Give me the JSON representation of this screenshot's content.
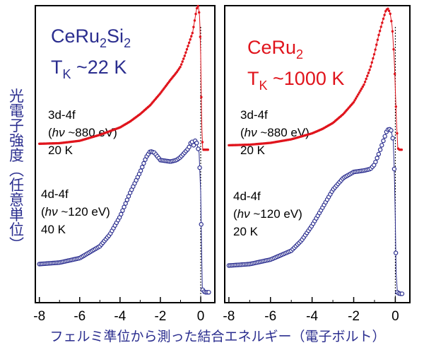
{
  "ylabel": "光電子強度（任意単位）",
  "xlabel": "フェルミ準位から測った結合エネルギー（電子ボルト）",
  "colors": {
    "blue": "#2b2e8f",
    "red": "#e0141c",
    "axis": "#000000"
  },
  "xticks": [
    "-8",
    "-6",
    "-4",
    "-2",
    "0"
  ],
  "panels": [
    {
      "material": {
        "base": "CeRu",
        "sub1": "2",
        "mid": "Si",
        "sub2": "2"
      },
      "tk": {
        "t": "T",
        "sub": "K",
        "rest": " ~22 K"
      },
      "title_color": "#2b2e8f",
      "label_3d": {
        "l1": "3d-4f",
        "l2_pre": "(",
        "l2_hnu": "hν",
        "l2_post": " ~880 eV)",
        "l3": "20 K"
      },
      "label_4d": {
        "l1": "4d-4f",
        "l2_pre": "(",
        "l2_hnu": "hν",
        "l2_post": " ~120 eV)",
        "l3": "40 K"
      }
    },
    {
      "material": {
        "base": "CeRu",
        "sub1": "2",
        "mid": "",
        "sub2": ""
      },
      "tk": {
        "t": "T",
        "sub": "K",
        "rest": " ~1000 K"
      },
      "title_color": "#e0141c",
      "label_3d": {
        "l1": "3d-4f",
        "l2_pre": "(",
        "l2_hnu": "hν",
        "l2_post": " ~880 eV)",
        "l3": "20 K"
      },
      "label_4d": {
        "l1": "4d-4f",
        "l2_pre": "(",
        "l2_hnu": "hν",
        "l2_post": " ~120 eV)",
        "l3": "20 K"
      }
    }
  ],
  "chart_data": [
    {
      "type": "scatter",
      "title": "CeRu2Si2, TK ~22 K",
      "xlabel": "フェルミ準位から測った結合エネルギー（電子ボルト）",
      "ylabel": "光電子強度（任意単位）",
      "xlim": [
        -8.2,
        0.7
      ],
      "x_reversed": false,
      "ylim": [
        0,
        1
      ],
      "series": [
        {
          "name": "3d-4f (hν ~880 eV) 20 K",
          "color": "#e0141c",
          "marker": "filled-dot",
          "points": [
            [
              -8.0,
              0.535
            ],
            [
              -7.0,
              0.537
            ],
            [
              -6.0,
              0.545
            ],
            [
              -5.0,
              0.565
            ],
            [
              -4.0,
              0.59
            ],
            [
              -3.5,
              0.61
            ],
            [
              -3.0,
              0.635
            ],
            [
              -2.5,
              0.665
            ],
            [
              -2.0,
              0.705
            ],
            [
              -1.5,
              0.75
            ],
            [
              -1.2,
              0.775
            ],
            [
              -1.0,
              0.795
            ],
            [
              -0.8,
              0.83
            ],
            [
              -0.6,
              0.87
            ],
            [
              -0.4,
              0.91
            ],
            [
              -0.3,
              0.95
            ],
            [
              -0.2,
              0.99
            ],
            [
              -0.12,
              1.0
            ],
            [
              -0.05,
              0.96
            ],
            [
              0.0,
              0.83
            ],
            [
              0.05,
              0.6
            ],
            [
              0.1,
              0.515
            ],
            [
              0.2,
              0.515
            ],
            [
              0.4,
              0.515
            ]
          ]
        },
        {
          "name": "4d-4f (hν ~120 eV) 40 K",
          "color": "#2b2e8f",
          "marker": "open-circle",
          "points": [
            [
              -8.0,
              0.13
            ],
            [
              -7.0,
              0.135
            ],
            [
              -6.0,
              0.15
            ],
            [
              -5.0,
              0.19
            ],
            [
              -4.5,
              0.23
            ],
            [
              -4.0,
              0.29
            ],
            [
              -3.5,
              0.37
            ],
            [
              -3.0,
              0.44
            ],
            [
              -2.7,
              0.49
            ],
            [
              -2.5,
              0.51
            ],
            [
              -2.3,
              0.505
            ],
            [
              -2.0,
              0.48
            ],
            [
              -1.5,
              0.475
            ],
            [
              -1.2,
              0.48
            ],
            [
              -1.0,
              0.49
            ],
            [
              -0.8,
              0.505
            ],
            [
              -0.6,
              0.52
            ],
            [
              -0.45,
              0.545
            ],
            [
              -0.35,
              0.53
            ],
            [
              -0.25,
              0.55
            ],
            [
              -0.15,
              0.525
            ],
            [
              -0.08,
              0.505
            ],
            [
              0.0,
              0.37
            ],
            [
              0.04,
              0.2
            ],
            [
              0.08,
              0.045
            ],
            [
              0.2,
              0.035
            ],
            [
              0.4,
              0.035
            ]
          ]
        }
      ]
    },
    {
      "type": "scatter",
      "title": "CeRu2, TK ~1000 K",
      "xlabel": "フェルミ準位から測った結合エネルギー（電子ボルト）",
      "ylabel": "光電子強度（任意単位）",
      "xlim": [
        -8.2,
        0.7
      ],
      "ylim": [
        0,
        1
      ],
      "series": [
        {
          "name": "3d-4f (hν ~880 eV) 20 K",
          "color": "#e0141c",
          "marker": "filled-dot",
          "points": [
            [
              -8.0,
              0.53
            ],
            [
              -7.0,
              0.532
            ],
            [
              -6.0,
              0.538
            ],
            [
              -5.0,
              0.55
            ],
            [
              -4.0,
              0.57
            ],
            [
              -3.5,
              0.585
            ],
            [
              -3.0,
              0.605
            ],
            [
              -2.5,
              0.635
            ],
            [
              -2.0,
              0.675
            ],
            [
              -1.5,
              0.735
            ],
            [
              -1.2,
              0.79
            ],
            [
              -1.0,
              0.84
            ],
            [
              -0.8,
              0.9
            ],
            [
              -0.6,
              0.95
            ],
            [
              -0.45,
              0.985
            ],
            [
              -0.35,
              0.99
            ],
            [
              -0.25,
              0.975
            ],
            [
              -0.15,
              0.93
            ],
            [
              -0.05,
              0.82
            ],
            [
              0.05,
              0.62
            ],
            [
              0.12,
              0.52
            ],
            [
              0.2,
              0.515
            ],
            [
              0.35,
              0.515
            ]
          ]
        },
        {
          "name": "4d-4f (hν ~120 eV) 20 K",
          "color": "#2b2e8f",
          "marker": "open-circle",
          "points": [
            [
              -8.0,
              0.125
            ],
            [
              -7.0,
              0.13
            ],
            [
              -6.0,
              0.145
            ],
            [
              -5.0,
              0.175
            ],
            [
              -4.5,
              0.21
            ],
            [
              -4.0,
              0.26
            ],
            [
              -3.5,
              0.32
            ],
            [
              -3.0,
              0.38
            ],
            [
              -2.5,
              0.42
            ],
            [
              -2.0,
              0.44
            ],
            [
              -1.5,
              0.445
            ],
            [
              -1.2,
              0.45
            ],
            [
              -1.0,
              0.465
            ],
            [
              -0.8,
              0.5
            ],
            [
              -0.6,
              0.54
            ],
            [
              -0.5,
              0.56
            ],
            [
              -0.4,
              0.58
            ],
            [
              -0.3,
              0.585
            ],
            [
              -0.2,
              0.58
            ],
            [
              -0.1,
              0.545
            ],
            [
              -0.05,
              0.45
            ],
            [
              0.0,
              0.28
            ],
            [
              0.04,
              0.1
            ],
            [
              0.1,
              0.035
            ],
            [
              0.2,
              0.03
            ],
            [
              0.35,
              0.03
            ]
          ]
        }
      ]
    }
  ]
}
